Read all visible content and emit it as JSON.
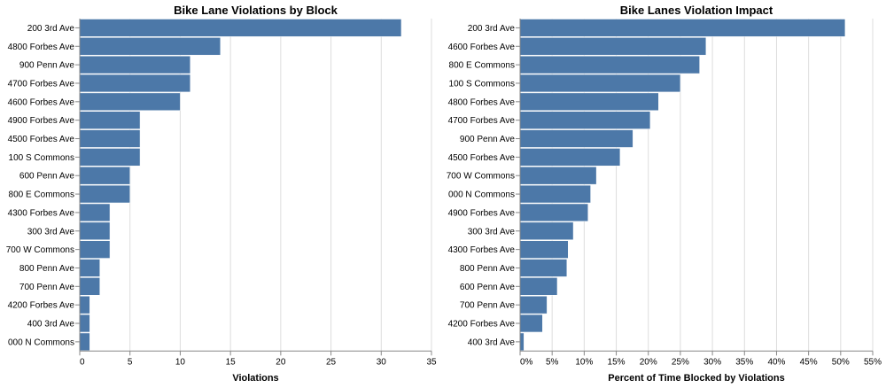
{
  "colors": {
    "bar": "#4c78a8"
  },
  "chart_data": [
    {
      "type": "bar",
      "orientation": "horizontal",
      "title": "Bike Lane Violations by Block",
      "xlabel": "Violations",
      "xlim": [
        0,
        35
      ],
      "xticks": [
        0,
        5,
        10,
        15,
        20,
        25,
        30,
        35
      ],
      "xtick_labels": [
        "0",
        "5",
        "10",
        "15",
        "20",
        "25",
        "30",
        "35"
      ],
      "grid": true,
      "categories": [
        "200 3rd Ave",
        "4800 Forbes Ave",
        "900 Penn Ave",
        "4700 Forbes Ave",
        "4600 Forbes Ave",
        "4900 Forbes Ave",
        "4500 Forbes Ave",
        "100 S Commons",
        "600 Penn Ave",
        "800 E Commons",
        "4300 Forbes Ave",
        "300 3rd Ave",
        "700 W Commons",
        "800 Penn Ave",
        "700 Penn Ave",
        "4200 Forbes Ave",
        "400 3rd Ave",
        "000 N Commons"
      ],
      "values": [
        32,
        14,
        11,
        11,
        10,
        6,
        6,
        6,
        5,
        5,
        3,
        3,
        3,
        2,
        2,
        1,
        1,
        1
      ]
    },
    {
      "type": "bar",
      "orientation": "horizontal",
      "title": "Bike Lanes Violation Impact",
      "xlabel": "Percent of Time Blocked by Violations",
      "xlim": [
        0,
        55
      ],
      "xticks": [
        0,
        5,
        10,
        15,
        20,
        25,
        30,
        35,
        40,
        45,
        50,
        55
      ],
      "xtick_labels": [
        "0%",
        "5%",
        "10%",
        "15%",
        "20%",
        "25%",
        "30%",
        "35%",
        "40%",
        "45%",
        "50%",
        "55%"
      ],
      "grid": true,
      "categories": [
        "200 3rd Ave",
        "4600 Forbes Ave",
        "800 E Commons",
        "100 S Commons",
        "4800 Forbes Ave",
        "4700 Forbes Ave",
        "900 Penn Ave",
        "4500 Forbes Ave",
        "700 W Commons",
        "000 N Commons",
        "4900 Forbes Ave",
        "300 3rd Ave",
        "4300 Forbes Ave",
        "800 Penn Ave",
        "600 Penn Ave",
        "700 Penn Ave",
        "4200 Forbes Ave",
        "400 3rd Ave"
      ],
      "values": [
        50.7,
        29.0,
        28.0,
        25.0,
        21.6,
        20.3,
        17.6,
        15.6,
        11.9,
        11.0,
        10.6,
        8.3,
        7.5,
        7.3,
        5.8,
        4.2,
        3.5,
        0.6
      ]
    }
  ]
}
